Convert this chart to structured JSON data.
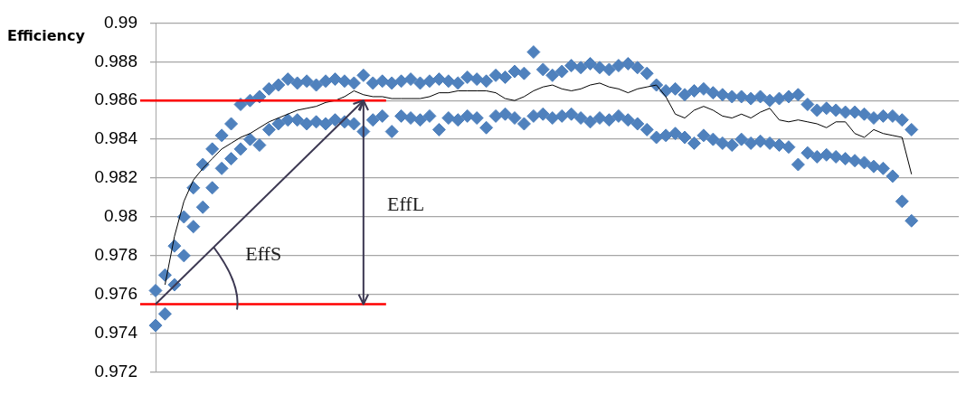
{
  "chart_data": {
    "type": "scatter",
    "ylabel": "Efficiency",
    "categories": [
      null,
      null,
      null,
      null,
      null,
      null,
      null,
      null,
      null,
      null,
      null,
      null,
      null,
      null,
      null,
      null,
      null,
      null,
      null,
      null,
      null,
      null,
      null,
      null,
      null,
      null,
      null,
      null,
      null,
      null,
      null,
      null,
      null,
      null,
      null,
      null,
      null,
      null,
      null,
      null,
      null,
      null,
      null,
      null,
      null,
      null,
      null,
      null,
      null,
      null,
      null,
      null,
      null,
      null,
      null,
      null,
      null,
      null,
      null,
      null,
      null,
      null,
      null,
      null,
      null,
      null,
      null,
      null,
      null,
      null,
      null,
      null,
      null,
      null,
      null,
      null,
      null,
      null,
      null,
      null,
      null,
      null,
      null,
      null,
      null,
      null
    ],
    "series": [
      {
        "color": "#4f81bd",
        "marker": "diamond",
        "values": [
          0.9762,
          0.977,
          0.9785,
          0.98,
          0.9815,
          0.9827,
          0.9835,
          0.9842,
          0.9848,
          0.9858,
          0.986,
          0.9862,
          0.9866,
          0.9868,
          0.9871,
          0.9869,
          0.987,
          0.9868,
          0.987,
          0.9871,
          0.987,
          0.9869,
          0.9873,
          0.9869,
          0.987,
          0.9869,
          0.987,
          0.9871,
          0.9869,
          0.987,
          0.9871,
          0.987,
          0.9869,
          0.9872,
          0.9871,
          0.987,
          0.9873,
          0.9872,
          0.9875,
          0.9874,
          0.9885,
          0.9876,
          0.9873,
          0.9875,
          0.9878,
          0.9877,
          0.9879,
          0.9877,
          0.9876,
          0.9878,
          0.9879,
          0.9877,
          0.9874,
          0.9868,
          0.9865,
          0.9866,
          0.9863,
          0.9865,
          0.9866,
          0.9864,
          0.9863,
          0.9862,
          0.9862,
          0.9861,
          0.9862,
          0.986,
          0.9861,
          0.9862,
          0.9863,
          0.9858,
          0.9855,
          0.9856,
          0.9855,
          0.9854,
          0.9854,
          0.9853,
          0.9851,
          0.9852,
          0.9852,
          0.985,
          0.9845,
          null,
          null,
          null,
          null,
          null
        ]
      },
      {
        "color": "#4f81bd",
        "marker": "diamond",
        "values": [
          0.9744,
          0.975,
          0.9765,
          0.978,
          0.9795,
          0.9805,
          0.9815,
          0.9825,
          0.983,
          0.9835,
          0.984,
          0.9837,
          0.9845,
          0.9848,
          0.985,
          0.985,
          0.9848,
          0.9849,
          0.9848,
          0.985,
          0.9849,
          0.9848,
          0.9844,
          0.985,
          0.9852,
          0.9844,
          0.9852,
          0.9851,
          0.985,
          0.9852,
          0.9845,
          0.9851,
          0.985,
          0.9852,
          0.9851,
          0.9846,
          0.9852,
          0.9853,
          0.9851,
          0.9848,
          0.9852,
          0.9853,
          0.9851,
          0.9852,
          0.9853,
          0.9851,
          0.9849,
          0.9851,
          0.985,
          0.9852,
          0.985,
          0.9848,
          0.9845,
          0.9841,
          0.9842,
          0.9843,
          0.9841,
          0.9838,
          0.9842,
          0.984,
          0.9838,
          0.9837,
          0.984,
          0.9838,
          0.9839,
          0.9838,
          0.9837,
          0.9836,
          0.9827,
          0.9833,
          0.9831,
          0.9832,
          0.9831,
          0.983,
          0.9829,
          0.9828,
          0.9826,
          0.9825,
          0.9821,
          0.9808,
          0.9798,
          null,
          null,
          null,
          null,
          null
        ]
      },
      {
        "type": "line",
        "color": "#000000",
        "marker": "none",
        "values": [
          null,
          0.9765,
          0.979,
          0.9808,
          0.9819,
          0.9825,
          0.983,
          0.9835,
          0.9838,
          0.9841,
          0.9843,
          0.9846,
          0.9849,
          0.9851,
          0.9853,
          0.9855,
          0.9856,
          0.9857,
          0.9859,
          0.986,
          0.9862,
          0.9865,
          0.9863,
          0.9862,
          0.9862,
          0.9861,
          0.9861,
          0.9861,
          0.9861,
          0.9862,
          0.9864,
          0.9864,
          0.9865,
          0.9865,
          0.9865,
          0.9865,
          0.9864,
          0.9861,
          0.986,
          0.9862,
          0.9865,
          0.9867,
          0.9868,
          0.9866,
          0.9865,
          0.9866,
          0.9868,
          0.9869,
          0.9867,
          0.9866,
          0.9864,
          0.9866,
          0.9867,
          0.9868,
          0.9862,
          0.9853,
          0.9851,
          0.9855,
          0.9857,
          0.9855,
          0.9852,
          0.9851,
          0.9853,
          0.9851,
          0.9854,
          0.9856,
          0.985,
          0.9849,
          0.985,
          0.9849,
          0.9848,
          0.9846,
          0.9849,
          0.9849,
          0.9843,
          0.9841,
          0.9845,
          0.9843,
          0.9842,
          0.9841,
          0.9822,
          null,
          null,
          null,
          null,
          null
        ]
      }
    ],
    "ylim": [
      0.972,
      0.99
    ],
    "yticks": [
      0.972,
      0.974,
      0.976,
      0.978,
      0.98,
      0.982,
      0.984,
      0.986,
      0.988,
      0.99
    ],
    "grid": "y",
    "tick_labels": "y",
    "legend": false,
    "ref_lines": [
      {
        "axis": "y",
        "value": 0.986,
        "color": "#ff0000"
      },
      {
        "axis": "y",
        "value": 0.9755,
        "color": "#ff0000"
      }
    ],
    "annotations": [
      "EffL",
      "EffS"
    ]
  }
}
